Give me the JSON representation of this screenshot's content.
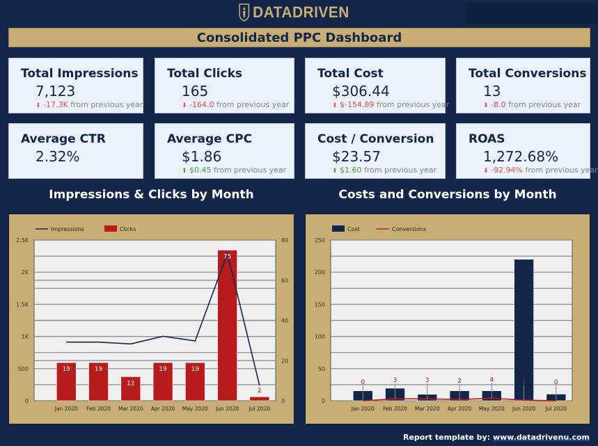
{
  "brand": {
    "name": "DATADRIVEN",
    "colors": {
      "navy": "#13264a",
      "gold": "#c8ae74",
      "red": "#b71c1c",
      "negative": "#e8504a",
      "positive": "#4c9a3c"
    }
  },
  "header": {
    "title": "Consolidated PPC Dashboard"
  },
  "kpis": [
    {
      "title": "Total Impressions",
      "value": "7,123",
      "delta": "-17.3K",
      "delta_dir": "down",
      "suffix": "from previous year"
    },
    {
      "title": "Total Clicks",
      "value": "165",
      "delta": "-164.0",
      "delta_dir": "down",
      "suffix": "from previous year"
    },
    {
      "title": "Total Cost",
      "value": "$306.44",
      "delta": "$-154.89",
      "delta_dir": "down",
      "suffix": "from previous year"
    },
    {
      "title": "Total Conversions",
      "value": "13",
      "delta": "-8.0",
      "delta_dir": "down",
      "suffix": "from previous year"
    },
    {
      "title": "Average CTR",
      "value": "2.32%"
    },
    {
      "title": "Average CPC",
      "value": "$1.86",
      "delta": "$0.45",
      "delta_dir": "up",
      "suffix": "from previous year"
    },
    {
      "title": "Cost / Conversion",
      "value": "$23.57",
      "delta": "$1.60",
      "delta_dir": "up",
      "suffix": "from previous year"
    },
    {
      "title": "ROAS",
      "value": "1,272.68%",
      "delta": "-92.94%",
      "delta_dir": "down",
      "suffix": "from previous year"
    }
  ],
  "sections": {
    "left": "Impressions & Clicks by Month",
    "right": "Costs and Conversions by Month"
  },
  "chart_data": [
    {
      "type": "bar+line",
      "categories": [
        "Jan 2020",
        "Feb 2020",
        "Mar 2020",
        "Apr 2020",
        "May 2020",
        "Jun 2020",
        "Jul 2020"
      ],
      "series": [
        {
          "name": "Impressions",
          "kind": "line",
          "axis": "left",
          "color": "#13264a",
          "values": [
            912,
            912,
            884,
            1003,
            931,
            2291,
            238
          ]
        },
        {
          "name": "Clicks",
          "kind": "bar",
          "axis": "right",
          "color": "#b71c1c",
          "values": [
            19,
            19,
            12,
            19,
            19,
            75,
            2
          ],
          "labels": [
            "19",
            "19",
            "12",
            "19",
            "19",
            "75",
            "2"
          ]
        }
      ],
      "left_axis": {
        "range": [
          0,
          2500
        ],
        "ticks": [
          "0",
          "500",
          "1K",
          "1.5K",
          "2K",
          "2.5K"
        ]
      },
      "right_axis": {
        "range": [
          0,
          80
        ],
        "ticks": [
          "0",
          "20",
          "40",
          "60",
          "80"
        ]
      },
      "legend": "top-left",
      "grid": true
    },
    {
      "type": "bar+line",
      "categories": [
        "Jan 2020",
        "Feb 2020",
        "Mar 2020",
        "Apr 2020",
        "May 2020",
        "Jun 2020",
        "Jul 2020"
      ],
      "series": [
        {
          "name": "Cost",
          "kind": "bar",
          "color": "#13264a",
          "values": [
            15.5,
            19.5,
            10,
            15.5,
            15.5,
            220,
            10.4
          ]
        },
        {
          "name": "Conversions",
          "kind": "line",
          "color": "#b71c1c",
          "values": [
            0,
            3,
            3,
            2,
            4,
            1,
            0
          ],
          "labels": [
            "0",
            "3",
            "3",
            "2",
            "4",
            "1",
            "0"
          ]
        }
      ],
      "left_axis": {
        "range": [
          0,
          250
        ],
        "ticks": [
          "0",
          "50",
          "100",
          "150",
          "200",
          "250"
        ]
      },
      "legend": "top-left",
      "grid": true
    }
  ],
  "footer": {
    "label": "Report template by:",
    "link": "www.datadrivenu.com"
  }
}
